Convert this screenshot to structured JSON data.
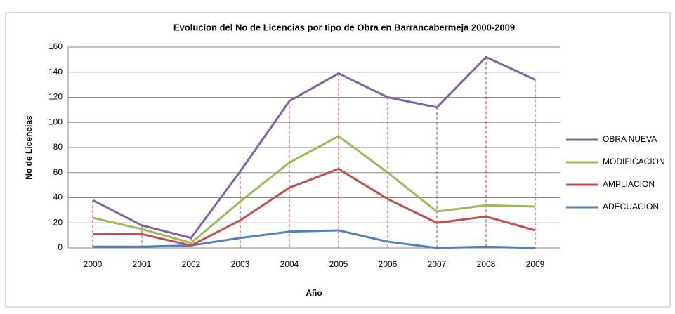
{
  "chart_data": {
    "type": "line",
    "title": "Evolucion del No de Licencias por tipo de Obra en Barrancabermeja 2000-2009",
    "xlabel": "Año",
    "ylabel": "No de Licencias",
    "categories": [
      "2000",
      "2001",
      "2002",
      "2003",
      "2004",
      "2005",
      "2006",
      "2007",
      "2008",
      "2009"
    ],
    "series": [
      {
        "name": "OBRA NUEVA",
        "color": "#8064a2",
        "values": [
          38,
          18,
          8,
          61,
          117,
          139,
          120,
          112,
          152,
          134
        ]
      },
      {
        "name": "MODIFICACION",
        "color": "#9bbb59",
        "values": [
          24,
          15,
          4,
          37,
          68,
          89,
          60,
          29,
          34,
          33
        ]
      },
      {
        "name": "AMPLIACION",
        "color": "#c0504d",
        "values": [
          11,
          11,
          2,
          22,
          48,
          63,
          39,
          20,
          25,
          14
        ]
      },
      {
        "name": "ADECUACION",
        "color": "#4f81bd",
        "values": [
          1,
          1,
          2,
          8,
          13,
          14,
          5,
          0,
          1,
          0
        ]
      }
    ],
    "ylim": [
      0,
      160
    ],
    "yticks": [
      0,
      20,
      40,
      60,
      80,
      100,
      120,
      140,
      160
    ],
    "grid": true,
    "legend": "right"
  }
}
